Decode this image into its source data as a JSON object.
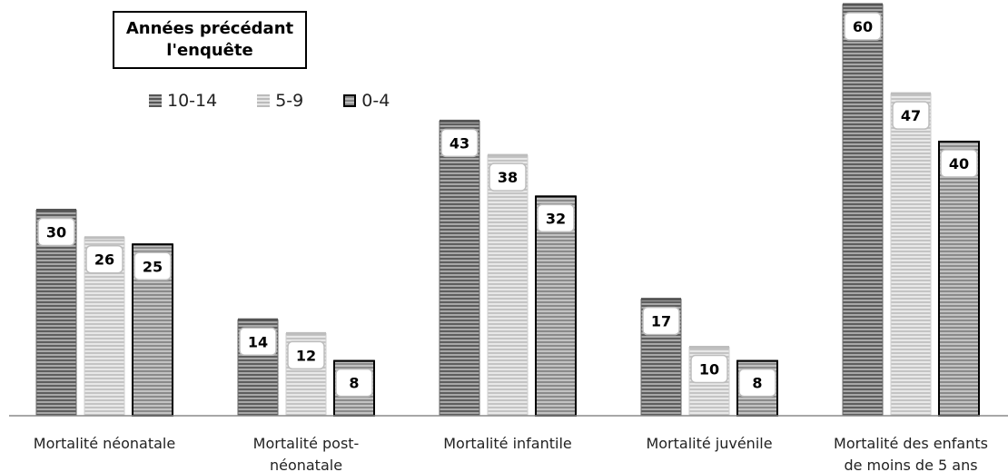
{
  "legend": {
    "title_line1": "Années précédant",
    "title_line2": "l'enquête"
  },
  "chart_data": {
    "type": "bar",
    "categories": [
      [
        "Mortalité néonatale"
      ],
      [
        "Mortalité post-",
        "néonatale"
      ],
      [
        "Mortalité infantile"
      ],
      [
        "Mortalité juvénile"
      ],
      [
        "Mortalité des enfants",
        "de moins de 5 ans"
      ]
    ],
    "series": [
      {
        "name": "10-14",
        "values": [
          30,
          14,
          43,
          17,
          60
        ]
      },
      {
        "name": "5-9",
        "values": [
          26,
          12,
          38,
          10,
          47
        ]
      },
      {
        "name": "0-4",
        "values": [
          25,
          8,
          32,
          8,
          40
        ]
      }
    ],
    "ylim": [
      0,
      60
    ],
    "grid": false,
    "legend_position": "top-left",
    "colors": {
      "s0": "#555555",
      "s1": "#bbbbbb",
      "s2": "#888888"
    }
  }
}
